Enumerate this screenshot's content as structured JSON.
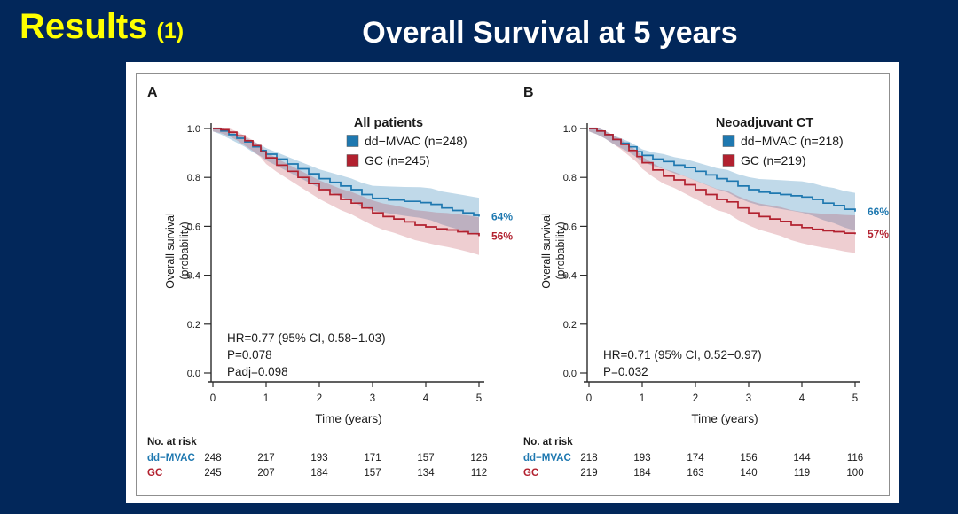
{
  "slide": {
    "results_label": "Results",
    "results_suffix": "(1)",
    "title": "Overall Survival at 5 years"
  },
  "colors": {
    "background": "#02275A",
    "accent_yellow": "#FFFF00",
    "blue": "#1E78B0",
    "red": "#B2212F",
    "blue_band": "rgba(30,120,176,0.28)",
    "red_band": "rgba(178,33,47,0.22)",
    "axis": "#2b2b2b",
    "text": "#1a1a1a"
  },
  "chart_data": [
    {
      "type": "line",
      "panel_label": "A",
      "legend_title": "All patients",
      "xlabel": "Time (years)",
      "ylabel_line1": "Overall survival",
      "ylabel_line2": "(probability)",
      "x_ticks": [
        "0",
        "1",
        "2",
        "3",
        "4",
        "5"
      ],
      "y_ticks": [
        "0.0",
        "0.2",
        "0.4",
        "0.6",
        "0.8",
        "1.0"
      ],
      "xlim": [
        0,
        5
      ],
      "ylim": [
        0,
        1
      ],
      "grid": false,
      "legend_position": "top-right-inside",
      "annotations": [
        "HR=0.77 (95% CI, 0.58−1.03)",
        "P=0.078",
        "Padj=0.098"
      ],
      "series": [
        {
          "name": "dd−MVAC (n=248)",
          "color_key": "blue",
          "end_label": "64%",
          "points": [
            [
              0,
              1.0
            ],
            [
              0.15,
              0.99
            ],
            [
              0.3,
              0.975
            ],
            [
              0.45,
              0.96
            ],
            [
              0.6,
              0.945
            ],
            [
              0.75,
              0.925
            ],
            [
              0.9,
              0.91
            ],
            [
              1.0,
              0.895
            ],
            [
              1.2,
              0.875
            ],
            [
              1.4,
              0.855
            ],
            [
              1.6,
              0.835
            ],
            [
              1.8,
              0.815
            ],
            [
              2.0,
              0.795
            ],
            [
              2.2,
              0.78
            ],
            [
              2.4,
              0.765
            ],
            [
              2.6,
              0.75
            ],
            [
              2.8,
              0.73
            ],
            [
              3.0,
              0.715
            ],
            [
              3.3,
              0.708
            ],
            [
              3.6,
              0.702
            ],
            [
              3.9,
              0.697
            ],
            [
              4.1,
              0.69
            ],
            [
              4.3,
              0.675
            ],
            [
              4.5,
              0.665
            ],
            [
              4.7,
              0.655
            ],
            [
              4.9,
              0.645
            ],
            [
              5.0,
              0.64
            ]
          ]
        },
        {
          "name": "GC (n=245)",
          "color_key": "red",
          "end_label": "56%",
          "points": [
            [
              0,
              1.0
            ],
            [
              0.15,
              0.995
            ],
            [
              0.3,
              0.985
            ],
            [
              0.45,
              0.97
            ],
            [
              0.6,
              0.95
            ],
            [
              0.75,
              0.93
            ],
            [
              0.9,
              0.905
            ],
            [
              1.0,
              0.88
            ],
            [
              1.2,
              0.85
            ],
            [
              1.4,
              0.825
            ],
            [
              1.6,
              0.8
            ],
            [
              1.8,
              0.775
            ],
            [
              2.0,
              0.75
            ],
            [
              2.2,
              0.73
            ],
            [
              2.4,
              0.71
            ],
            [
              2.6,
              0.695
            ],
            [
              2.8,
              0.675
            ],
            [
              3.0,
              0.655
            ],
            [
              3.2,
              0.64
            ],
            [
              3.4,
              0.63
            ],
            [
              3.6,
              0.618
            ],
            [
              3.8,
              0.605
            ],
            [
              4.0,
              0.598
            ],
            [
              4.2,
              0.59
            ],
            [
              4.4,
              0.585
            ],
            [
              4.6,
              0.578
            ],
            [
              4.8,
              0.57
            ],
            [
              5.0,
              0.56
            ]
          ]
        }
      ],
      "risk_table": {
        "header": "No. at risk",
        "rows": [
          {
            "label": "dd−MVAC",
            "color_key": "blue",
            "values": [
              "248",
              "217",
              "193",
              "171",
              "157",
              "126"
            ]
          },
          {
            "label": "GC",
            "color_key": "red",
            "values": [
              "245",
              "207",
              "184",
              "157",
              "134",
              "112"
            ]
          }
        ]
      }
    },
    {
      "type": "line",
      "panel_label": "B",
      "legend_title": "Neoadjuvant CT",
      "xlabel": "Time (years)",
      "ylabel_line1": "Overall survival",
      "ylabel_line2": "(probability)",
      "x_ticks": [
        "0",
        "1",
        "2",
        "3",
        "4",
        "5"
      ],
      "y_ticks": [
        "0.0",
        "0.2",
        "0.4",
        "0.6",
        "0.8",
        "1.0"
      ],
      "xlim": [
        0,
        5
      ],
      "ylim": [
        0,
        1
      ],
      "grid": false,
      "legend_position": "top-right-inside",
      "annotations": [
        "HR=0.71 (95% CI, 0.52−0.97)",
        "P=0.032"
      ],
      "series": [
        {
          "name": "dd−MVAC (n=218)",
          "color_key": "blue",
          "end_label": "66%",
          "points": [
            [
              0,
              1.0
            ],
            [
              0.15,
              0.99
            ],
            [
              0.3,
              0.975
            ],
            [
              0.45,
              0.955
            ],
            [
              0.6,
              0.94
            ],
            [
              0.75,
              0.925
            ],
            [
              0.9,
              0.905
            ],
            [
              1.0,
              0.89
            ],
            [
              1.2,
              0.875
            ],
            [
              1.4,
              0.865
            ],
            [
              1.6,
              0.85
            ],
            [
              1.8,
              0.84
            ],
            [
              2.0,
              0.825
            ],
            [
              2.2,
              0.81
            ],
            [
              2.4,
              0.795
            ],
            [
              2.6,
              0.785
            ],
            [
              2.8,
              0.765
            ],
            [
              3.0,
              0.75
            ],
            [
              3.2,
              0.74
            ],
            [
              3.4,
              0.735
            ],
            [
              3.6,
              0.73
            ],
            [
              3.8,
              0.725
            ],
            [
              4.0,
              0.72
            ],
            [
              4.2,
              0.71
            ],
            [
              4.4,
              0.695
            ],
            [
              4.6,
              0.685
            ],
            [
              4.8,
              0.67
            ],
            [
              5.0,
              0.66
            ]
          ]
        },
        {
          "name": "GC (n=219)",
          "color_key": "red",
          "end_label": "57%",
          "points": [
            [
              0,
              1.0
            ],
            [
              0.15,
              0.99
            ],
            [
              0.3,
              0.975
            ],
            [
              0.45,
              0.955
            ],
            [
              0.6,
              0.935
            ],
            [
              0.75,
              0.91
            ],
            [
              0.9,
              0.885
            ],
            [
              1.0,
              0.86
            ],
            [
              1.2,
              0.83
            ],
            [
              1.4,
              0.805
            ],
            [
              1.6,
              0.79
            ],
            [
              1.8,
              0.77
            ],
            [
              2.0,
              0.75
            ],
            [
              2.2,
              0.73
            ],
            [
              2.4,
              0.71
            ],
            [
              2.6,
              0.7
            ],
            [
              2.8,
              0.675
            ],
            [
              3.0,
              0.655
            ],
            [
              3.2,
              0.64
            ],
            [
              3.4,
              0.63
            ],
            [
              3.6,
              0.62
            ],
            [
              3.8,
              0.605
            ],
            [
              4.0,
              0.595
            ],
            [
              4.2,
              0.588
            ],
            [
              4.4,
              0.582
            ],
            [
              4.6,
              0.578
            ],
            [
              4.8,
              0.572
            ],
            [
              5.0,
              0.568
            ]
          ]
        }
      ],
      "risk_table": {
        "header": "No. at risk",
        "rows": [
          {
            "label": "dd−MVAC",
            "color_key": "blue",
            "values": [
              "218",
              "193",
              "174",
              "156",
              "144",
              "116"
            ]
          },
          {
            "label": "GC",
            "color_key": "red",
            "values": [
              "219",
              "184",
              "163",
              "140",
              "119",
              "100"
            ]
          }
        ]
      }
    }
  ]
}
